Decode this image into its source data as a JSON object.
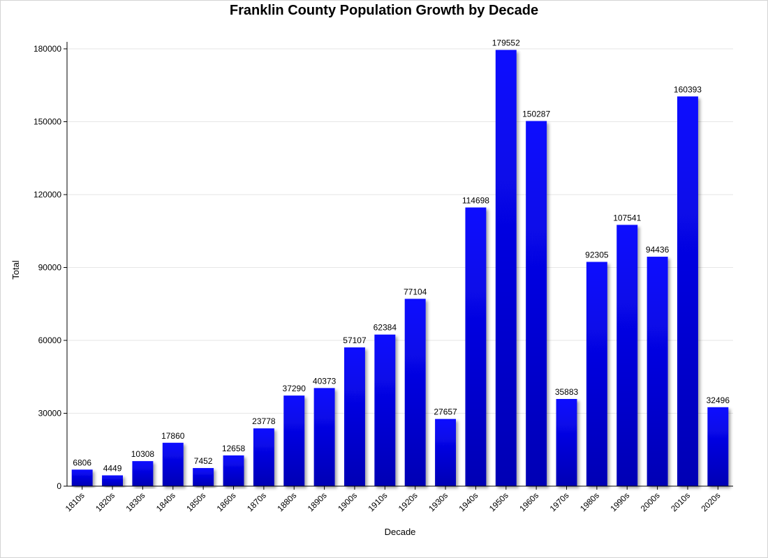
{
  "chart_data": {
    "type": "bar",
    "title": "Franklin County Population Growth by Decade",
    "xlabel": "Decade",
    "ylabel": "Total",
    "categories": [
      "1810s",
      "1820s",
      "1830s",
      "1840s",
      "1850s",
      "1860s",
      "1870s",
      "1880s",
      "1890s",
      "1900s",
      "1910s",
      "1920s",
      "1930s",
      "1940s",
      "1950s",
      "1960s",
      "1970s",
      "1980s",
      "1990s",
      "2000s",
      "2010s",
      "2020s"
    ],
    "values": [
      6806,
      4449,
      10308,
      17860,
      7452,
      12658,
      23778,
      37290,
      40373,
      57107,
      62384,
      77104,
      27657,
      114698,
      179552,
      150287,
      35883,
      92305,
      107541,
      94436,
      160393,
      32496
    ],
    "ylim": [
      0,
      180000
    ],
    "yticks": [
      0,
      30000,
      60000,
      90000,
      120000,
      150000,
      180000
    ],
    "grid": true,
    "legend": "none",
    "data_labels": true,
    "colors": {
      "bar_top": "#0a0aff",
      "bar_bottom": "#0000b4",
      "grid": "#e6e6e6",
      "axis": "#000000"
    }
  }
}
